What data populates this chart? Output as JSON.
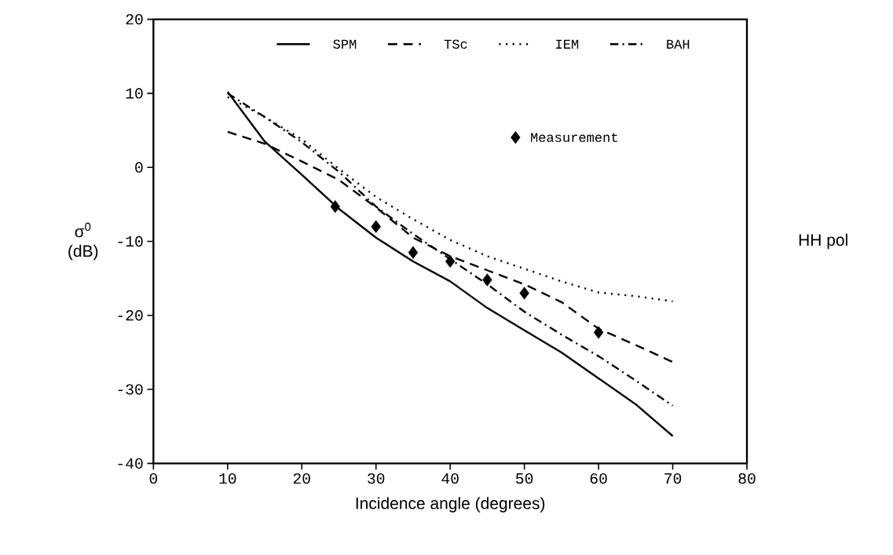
{
  "chart_data": {
    "type": "line",
    "xlabel": "Incidence angle (degrees)",
    "ylabel": "σ$^{0}$ (dB)",
    "annotations": [
      "HH pol"
    ],
    "xlim": [
      0,
      80
    ],
    "ylim": [
      -40,
      20
    ],
    "xticks": [
      0,
      10,
      20,
      30,
      40,
      50,
      60,
      70,
      80
    ],
    "yticks": [
      -40,
      -30,
      -20,
      -10,
      0,
      10,
      20
    ],
    "legend": "top right",
    "series": [
      {
        "name": "SPM",
        "color": "#000000",
        "line_style": "solid",
        "x": [
          10,
          15,
          20,
          25,
          30,
          35,
          40,
          45,
          50,
          55,
          60,
          65,
          70
        ],
        "values": [
          10.2,
          3.5,
          -1,
          -5.6,
          -9.5,
          -12.7,
          -15.4,
          -19,
          -22,
          -25,
          -28.5,
          -32,
          -36.3
        ]
      },
      {
        "name": "TSc",
        "color": "#000000",
        "line_style": "dashed",
        "x": [
          10,
          15,
          20,
          25,
          30,
          35,
          40,
          45,
          50,
          55,
          60,
          65,
          70
        ],
        "values": [
          4.8,
          3.2,
          0.8,
          -1.7,
          -5.4,
          -9.5,
          -12,
          -13.9,
          -15.8,
          -18.2,
          -21.8,
          -24,
          -26.3
        ]
      },
      {
        "name": "IEM",
        "color": "#000000",
        "line_style": "dotted",
        "x": [
          10,
          15,
          20,
          25,
          30,
          35,
          40,
          45,
          50,
          55,
          60,
          65,
          70
        ],
        "values": [
          9.5,
          6.8,
          3.8,
          -0.2,
          -4,
          -7,
          -9.8,
          -12,
          -13.7,
          -15.4,
          -16.9,
          -17.4,
          -18.1
        ]
      },
      {
        "name": "BAH",
        "color": "#000000",
        "line_style": "dashdot",
        "x": [
          10,
          15,
          20,
          25,
          30,
          35,
          40,
          45,
          50,
          55,
          60,
          65,
          70
        ],
        "values": [
          10,
          6.8,
          3.4,
          -0.6,
          -5.3,
          -9,
          -12.4,
          -15.8,
          -19.5,
          -22.6,
          -25.5,
          -28.8,
          -32.2
        ]
      },
      {
        "name": "Measurement",
        "type": "scatter",
        "marker": "diamond",
        "color": "#000000",
        "x": [
          24.5,
          30,
          35,
          40,
          45,
          50,
          60
        ],
        "values": [
          -5.3,
          -8,
          -11.5,
          -12.7,
          -15.2,
          -17,
          -22.3
        ]
      }
    ]
  }
}
